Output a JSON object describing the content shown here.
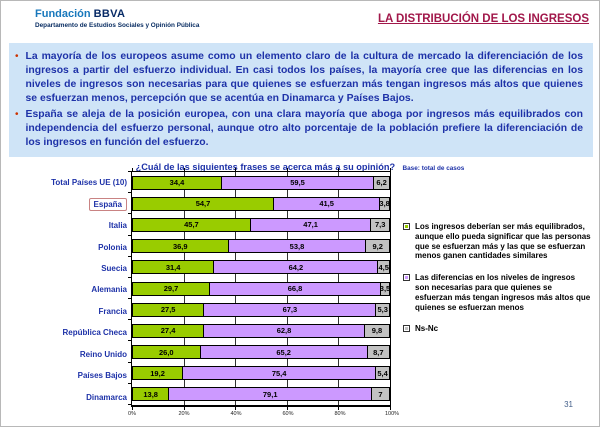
{
  "header": {
    "logo_primary": "Fundación",
    "logo_bold": "BBVA",
    "logo_subtitle": "Departamento de Estudios Sociales y Opinión Pública",
    "title": "LA DISTRIBUCIÓN DE LOS INGRESOS"
  },
  "bullet_marker": "•",
  "bullets": [
    "La mayoría de los europeos asume como un elemento claro de la cultura de mercado la diferenciación de los ingresos a partir del esfuerzo individual. En casi todos los países, la mayoría cree que las diferencias en los niveles de ingresos son necesarias para que quienes se esfuerzan más tengan ingresos más altos que quienes se esfuerzan menos, percepción que se acentúa en Dinamarca y Países Bajos.",
    "España se aleja de la posición europea, con una clara mayoría que aboga por ingresos más equilibrados con independencia del esfuerzo personal, aunque otro alto porcentaje de la población prefiere la diferenciación de los ingresos en función del esfuerzo."
  ],
  "chart_data": {
    "type": "bar",
    "orientation": "horizontal-stacked",
    "title": "¿Cuál de las siguientes frases se acerca más a su opinión?",
    "title_suffix": "Base: total de casos",
    "categories": [
      "Total Países UE (10)",
      "España",
      "Italia",
      "Polonia",
      "Suecia",
      "Alemania",
      "Francia",
      "República Checa",
      "Reino Unido",
      "Países Bajos",
      "Dinamarca"
    ],
    "highlighted_category": "España",
    "series": [
      {
        "name": "Los ingresos deberían ser más equilibrados, aunque ello pueda significar que las personas que se esfuerzan más y las que se esfuerzan menos ganen cantidades similares",
        "color": "#99cc00",
        "values": [
          34.4,
          54.7,
          45.7,
          36.9,
          31.4,
          29.7,
          27.5,
          27.4,
          26.0,
          19.2,
          13.8
        ],
        "labels": [
          "34,4",
          "54,7",
          "45,7",
          "36,9",
          "31,4",
          "29,7",
          "27,5",
          "27,4",
          "26,0",
          "19,2",
          "13,8"
        ]
      },
      {
        "name": "Las diferencias en los niveles de ingresos son necesarias para que quienes se esfuerzan más tengan ingresos más altos que quienes se esfuerzan menos",
        "color": "#cc99ff",
        "values": [
          59.5,
          41.5,
          47.1,
          53.8,
          64.2,
          66.8,
          67.3,
          62.8,
          65.2,
          75.4,
          79.1
        ],
        "labels": [
          "59,5",
          "41,5",
          "47,1",
          "53,8",
          "64,2",
          "66,8",
          "67,3",
          "62,8",
          "65,2",
          "75,4",
          "79,1"
        ]
      },
      {
        "name": "Ns-Nc",
        "color": "#c2c2c2",
        "values": [
          6.2,
          3.8,
          7.3,
          9.2,
          4.5,
          3.5,
          5.3,
          9.8,
          8.7,
          5.4,
          7
        ],
        "labels": [
          "6,2",
          "3,8",
          "7,3",
          "9,2",
          "4,5",
          "3,5",
          "5,3",
          "9,8",
          "8,7",
          "5,4",
          "7"
        ]
      }
    ],
    "x_ticks": [
      "0%",
      "20%",
      "40%",
      "60%",
      "80%",
      "100%"
    ],
    "xlim": [
      0,
      100
    ],
    "grid": true,
    "legend_position": "right"
  },
  "footer": {
    "page_number": "31"
  },
  "colors": {
    "title_red": "#a1174a",
    "text_blue": "#1e32a8",
    "box_bg": "#cfe4f7",
    "logo_blue": "#1878bc",
    "logo_navy": "#072a66"
  }
}
